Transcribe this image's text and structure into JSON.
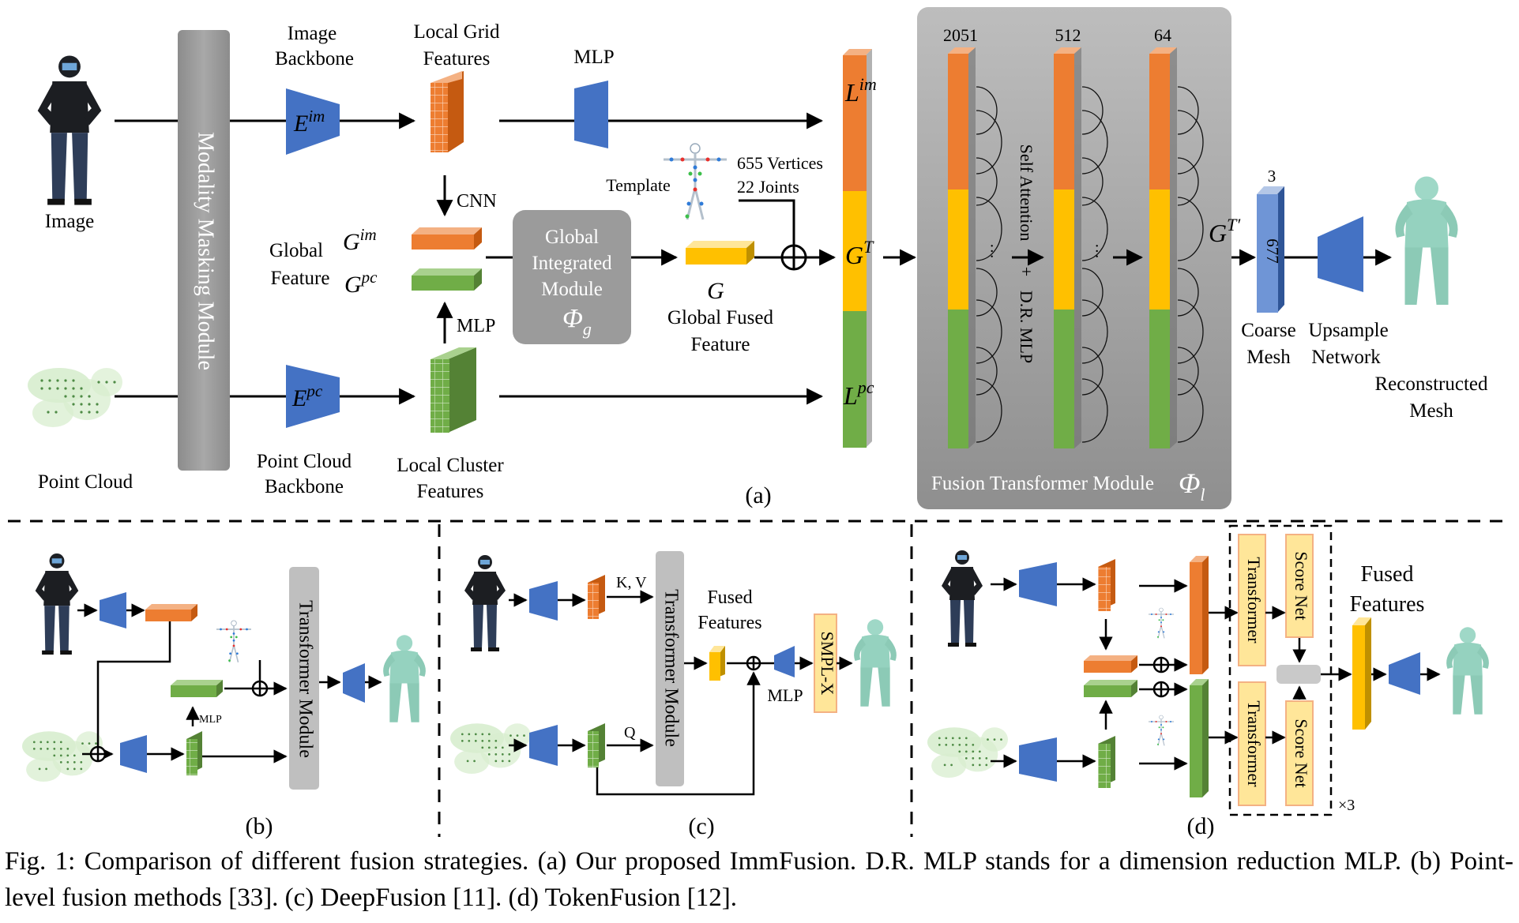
{
  "colors": {
    "orange": "#ed7d31",
    "yellow": "#ffc000",
    "green": "#70ad47",
    "blue": "#4472c4",
    "gray_panel": "#a6a6a6",
    "pink_module": "#ffe699"
  },
  "icons": [
    "person-image-icon",
    "point-cloud-icon",
    "template-mesh-icon",
    "reconstructed-mesh-icon",
    "oplus-icon"
  ],
  "panel_a": {
    "image_label": "Image",
    "pointcloud_label": "Point Cloud",
    "masking_module": "Modality Masking Module",
    "image_backbone_l1": "Image",
    "image_backbone_l2": "Backbone",
    "pc_backbone_l1": "Point Cloud",
    "pc_backbone_l2": "Backbone",
    "enc_im": "E",
    "enc_im_sup": "im",
    "enc_pc": "E",
    "enc_pc_sup": "pc",
    "local_grid_l1": "Local Grid",
    "local_grid_l2": "Features",
    "local_cluster_l1": "Local Cluster",
    "local_cluster_l2": "Features",
    "mlp_top": "MLP",
    "cnn": "CNN",
    "mlp_mid": "MLP",
    "global_feature_l1": "Global",
    "global_feature_l2": "Feature",
    "g_im": "G",
    "g_im_sup": "im",
    "g_pc": "G",
    "g_pc_sup": "pc",
    "gim_l1": "Global",
    "gim_l2": "Integrated",
    "gim_l3": "Module",
    "phi_g": "Φ",
    "phi_g_sub": "g",
    "template": "Template",
    "vertices": "655 Vertices",
    "joints": "22 Joints",
    "g_fused": "G",
    "global_fused_l1": "Global Fused",
    "global_fused_l2": "Feature",
    "l_im": "L",
    "l_im_sup": "im",
    "g_t": "G",
    "g_t_sup": "T",
    "l_pc": "L",
    "l_pc_sup": "pc",
    "dim1": "2051",
    "dim2": "512",
    "dim3": "64",
    "self_attention": "Self Attention",
    "plus": "+",
    "dr_mlp": "D.R. MLP",
    "dots": "···",
    "fusion_module": "Fusion Transformer Module",
    "phi_l": "Φ",
    "phi_l_sub": "l",
    "g_t_prime": "G",
    "g_t_prime_sup": "T′",
    "coarse_3": "3",
    "coarse_677": "677",
    "coarse_l1": "Coarse",
    "coarse_l2": "Mesh",
    "upsample_l1": "Upsample",
    "upsample_l2": "Network",
    "recon_l1": "Reconstructed",
    "recon_l2": "Mesh",
    "panel_label": "(a)"
  },
  "panel_b": {
    "transformer": "Transformer Module",
    "mlp": "MLP",
    "panel_label": "(b)"
  },
  "panel_c": {
    "kv": "K, V",
    "q": "Q",
    "transformer": "Transformer Module",
    "fused_l1": "Fused",
    "fused_l2": "Features",
    "mlp": "MLP",
    "smplx": "SMPL-X",
    "panel_label": "(c)"
  },
  "panel_d": {
    "transformer_top": "Transformer",
    "transformer_bottom": "Transformer",
    "score_top": "Score Net",
    "score_bottom": "Score Net",
    "fused_l1": "Fused",
    "fused_l2": "Features",
    "times3": "×3",
    "panel_label": "(d)"
  },
  "caption": "Fig. 1: Comparison of different fusion strategies. (a) Our proposed ImmFusion. D.R. MLP stands for a dimension reduction MLP. (b) Point-level fusion methods [33]. (c) DeepFusion [11]. (d) TokenFusion [12]."
}
